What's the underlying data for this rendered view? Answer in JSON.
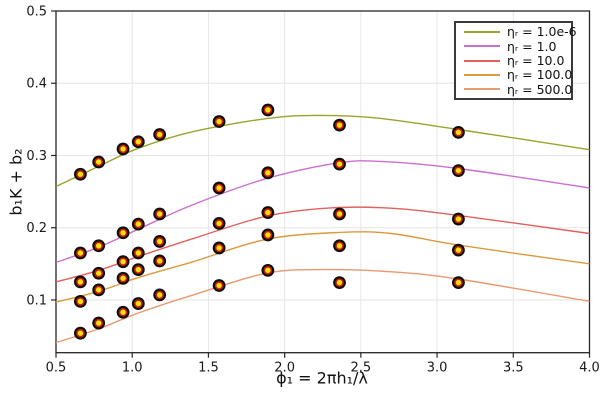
{
  "chart_data": {
    "type": "scatter",
    "title": "",
    "xlabel": "ϕ₁ = 2πh₁/λ",
    "ylabel": "b₁K + b₂",
    "xlim": [
      0.5,
      4.0
    ],
    "ylim": [
      0.027,
      0.5
    ],
    "xticks": [
      0.5,
      1.0,
      1.5,
      2.0,
      2.5,
      3.0,
      3.5,
      4.0
    ],
    "xtick_labels": [
      "0.5",
      "1.0",
      "1.5",
      "2.0",
      "2.5",
      "3.0",
      "3.5",
      "4.0"
    ],
    "yticks": [
      0.1,
      0.2,
      0.3,
      0.4,
      0.5
    ],
    "ytick_labels": [
      "0.1",
      "0.2",
      "0.3",
      "0.4",
      "0.5"
    ],
    "grid": true,
    "legend_position": "top-right",
    "x": [
      0.66,
      0.78,
      0.94,
      1.04,
      1.18,
      1.57,
      1.89,
      2.36,
      3.14
    ],
    "series": [
      {
        "name": "ηᵣ = 1.0e-6",
        "color": "#9aa42b",
        "y": [
          0.274,
          0.291,
          0.309,
          0.319,
          0.329,
          0.347,
          0.363,
          0.342,
          0.332
        ],
        "fit": [
          [
            0.5,
            0.257
          ],
          [
            0.78,
            0.285
          ],
          [
            1.04,
            0.31
          ],
          [
            1.4,
            0.333
          ],
          [
            1.88,
            0.351
          ],
          [
            2.2,
            0.3555
          ],
          [
            2.6,
            0.352
          ],
          [
            3.14,
            0.336
          ],
          [
            4.0,
            0.308
          ]
        ]
      },
      {
        "name": "ηᵣ = 1.0",
        "color": "#cb6ed1",
        "y": [
          0.165,
          0.175,
          0.193,
          0.205,
          0.219,
          0.255,
          0.276,
          0.288,
          0.279
        ],
        "fit": [
          [
            0.5,
            0.152
          ],
          [
            0.78,
            0.173
          ],
          [
            1.04,
            0.198
          ],
          [
            1.4,
            0.232
          ],
          [
            1.88,
            0.268
          ],
          [
            2.36,
            0.29
          ],
          [
            2.65,
            0.2915
          ],
          [
            3.14,
            0.282
          ],
          [
            4.0,
            0.255
          ]
        ]
      },
      {
        "name": "ηᵣ = 10.0",
        "color": "#e2615f",
        "y": [
          0.125,
          0.137,
          0.153,
          0.165,
          0.181,
          0.206,
          0.221,
          0.219,
          0.212
        ],
        "fit": [
          [
            0.5,
            0.125
          ],
          [
            0.78,
            0.141
          ],
          [
            1.04,
            0.16
          ],
          [
            1.4,
            0.185
          ],
          [
            1.88,
            0.216
          ],
          [
            2.3,
            0.2275
          ],
          [
            2.7,
            0.227
          ],
          [
            3.14,
            0.217
          ],
          [
            4.0,
            0.192
          ]
        ]
      },
      {
        "name": "ηᵣ = 100.0",
        "color": "#dc9a3f",
        "y": [
          0.098,
          0.114,
          0.13,
          0.142,
          0.154,
          0.172,
          0.19,
          0.175,
          0.169
        ],
        "fit": [
          [
            0.5,
            0.097
          ],
          [
            0.78,
            0.112
          ],
          [
            1.04,
            0.131
          ],
          [
            1.4,
            0.153
          ],
          [
            1.88,
            0.184
          ],
          [
            2.36,
            0.1935
          ],
          [
            2.7,
            0.192
          ],
          [
            3.14,
            0.176
          ],
          [
            4.0,
            0.15
          ]
        ]
      },
      {
        "name": "ηᵣ = 500.0",
        "color": "#e89a70",
        "y": [
          0.054,
          0.068,
          0.083,
          0.095,
          0.107,
          0.12,
          0.141,
          0.124,
          0.124
        ],
        "fit": [
          [
            0.5,
            0.041
          ],
          [
            0.78,
            0.06
          ],
          [
            1.04,
            0.082
          ],
          [
            1.4,
            0.107
          ],
          [
            1.88,
            0.137
          ],
          [
            2.25,
            0.142
          ],
          [
            2.7,
            0.139
          ],
          [
            3.14,
            0.129
          ],
          [
            4.0,
            0.098
          ]
        ]
      }
    ],
    "marker": {
      "outer_color": "#0d0d0d",
      "ring_color": "#c81d11",
      "core_color": "#ffe105"
    }
  }
}
